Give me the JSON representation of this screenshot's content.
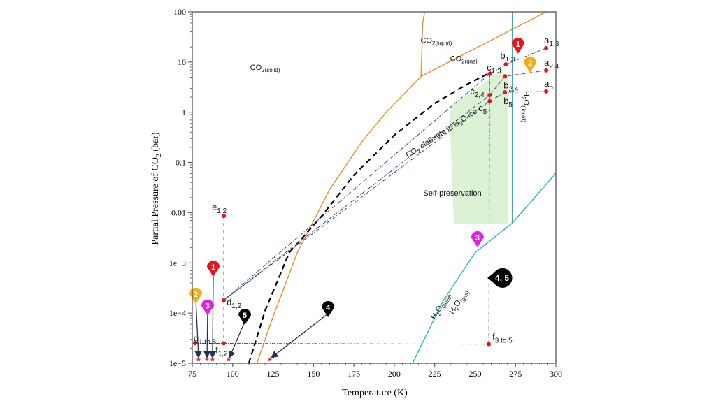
{
  "chart_data": {
    "type": "line",
    "xlabel": "Temperature (K)",
    "ylabel": {
      "main": "Partial Pressure of CO",
      "sub": "2",
      "tail": " (bar)"
    },
    "xlim": [
      75,
      300
    ],
    "ylim": [
      1e-05,
      100
    ],
    "yscale": "log",
    "grid": false,
    "x_ticks": [
      75,
      100,
      125,
      150,
      175,
      200,
      225,
      250,
      275,
      300
    ],
    "y_ticks": [
      100,
      10,
      1,
      0.1,
      0.01,
      0.001,
      0.0001,
      1e-05
    ],
    "y_tick_labels": [
      "100",
      "10",
      "1",
      "0.1",
      "0.01",
      "1e−3",
      "1e−4",
      "1e−5"
    ],
    "colors": {
      "co2_boundary": "#f08a24",
      "h2o_boundary": "#22b8c0",
      "clathrate": "#000000",
      "path": "#2c4a6e",
      "point": "#e8141c",
      "self_preservation": "#d9efcf"
    },
    "curves": [
      {
        "id": "co2-solid-gas",
        "color": "#f08a24",
        "style": "solid",
        "points": [
          [
            115,
            1e-05
          ],
          [
            125,
            8.5e-05
          ],
          [
            140,
            0.0016
          ],
          [
            160,
            0.029
          ],
          [
            180,
            0.26
          ],
          [
            195,
            1.0
          ],
          [
            216.6,
            5.18
          ]
        ]
      },
      {
        "id": "co2-solid-liquid",
        "color": "#f08a24",
        "style": "solid",
        "points": [
          [
            216.6,
            5.18
          ],
          [
            217.6,
            60
          ],
          [
            218.8,
            100
          ]
        ]
      },
      {
        "id": "co2-liquid-gas",
        "color": "#f08a24",
        "style": "solid",
        "points": [
          [
            216.6,
            5.18
          ],
          [
            294,
            100
          ]
        ]
      },
      {
        "id": "clathrate",
        "color": "#000000",
        "style": "dashed",
        "points": [
          [
            110,
            1e-05
          ],
          [
            120,
            0.00011
          ],
          [
            135,
            0.0016
          ],
          [
            155,
            0.0085
          ],
          [
            175,
            0.056
          ],
          [
            200,
            0.35
          ],
          [
            225,
            1.5
          ],
          [
            245,
            3.6
          ],
          [
            260,
            6.3
          ]
        ]
      },
      {
        "id": "h2o-melting",
        "color": "#22b8c0",
        "style": "solid",
        "points": [
          [
            273,
            0.0062
          ],
          [
            273,
            100
          ]
        ]
      },
      {
        "id": "h2o-solid-gas",
        "color": "#22b8c0",
        "style": "solid",
        "points": [
          [
            211.3,
            1e-05
          ],
          [
            230,
            0.00017
          ],
          [
            250,
            0.0016
          ],
          [
            273,
            0.0062
          ],
          [
            300,
            0.061
          ]
        ]
      }
    ],
    "self_preservation_region": [
      [
        234.2,
        1.2
      ],
      [
        266.3,
        7.0
      ],
      [
        270.6,
        5.0
      ],
      [
        270.6,
        0.006
      ],
      [
        236.8,
        0.006
      ]
    ],
    "points": [
      {
        "id": "a13",
        "label": "a",
        "sub": "1,3",
        "x": 294,
        "y": 19,
        "lx": -3,
        "ly": -7
      },
      {
        "id": "a24",
        "label": "a",
        "sub": "2,4",
        "x": 294,
        "y": 6.8,
        "lx": -3,
        "ly": -7
      },
      {
        "id": "a5",
        "label": "a",
        "sub": "5",
        "x": 294,
        "y": 2.6,
        "lx": -3,
        "ly": -7
      },
      {
        "id": "b13",
        "label": "b",
        "sub": "1,3",
        "x": 269,
        "y": 9.0,
        "lx": -8,
        "ly": -8
      },
      {
        "id": "b24",
        "label": "b",
        "sub": "2,4",
        "x": 268.5,
        "y": 5.2,
        "lx": -2,
        "ly": 17
      },
      {
        "id": "b5",
        "label": "b",
        "sub": "5",
        "x": 268.5,
        "y": 2.5,
        "lx": -2,
        "ly": 17
      },
      {
        "id": "c13",
        "label": "c",
        "sub": "1,3",
        "x": 259,
        "y": 5.8,
        "lx": -4,
        "ly": -5
      },
      {
        "id": "c24",
        "label": "c",
        "sub": "2,4",
        "x": 259,
        "y": 2.2,
        "lx": -28,
        "ly": -1
      },
      {
        "id": "c5",
        "label": "c",
        "sub": "5",
        "x": 259,
        "y": 1.66,
        "lx": -16,
        "ly": 14
      },
      {
        "id": "e12",
        "label": "e",
        "sub": "1,2",
        "x": 94.5,
        "y": 0.0086,
        "lx": -17,
        "ly": -8
      },
      {
        "id": "d12",
        "label": "d",
        "sub": "1,2",
        "x": 94.5,
        "y": 0.00018,
        "lx": 4,
        "ly": 7
      },
      {
        "id": "f12",
        "label": "f",
        "sub": "1,2",
        "x": 94.5,
        "y": 2.5e-05,
        "lx": -12,
        "ly": 14
      },
      {
        "id": "g",
        "label": "g",
        "sub": "1 to 5",
        "x": 76.7,
        "y": 2.5e-05,
        "lx": -2,
        "ly": -3
      },
      {
        "id": "f35",
        "label": "f",
        "sub": "3 to 5",
        "x": 258.5,
        "y": 2.4e-05,
        "lx": 5,
        "ly": -6
      }
    ],
    "end_markers": [
      {
        "x": 78.9,
        "y": 1.15e-05
      },
      {
        "x": 84.1,
        "y": 1.15e-05
      },
      {
        "x": 87.5,
        "y": 1.15e-05
      },
      {
        "x": 97.5,
        "y": 1.15e-05
      },
      {
        "x": 123,
        "y": 1.15e-05
      }
    ],
    "paths": [
      [
        [
          294,
          19
        ],
        [
          269,
          9.0
        ],
        [
          259,
          5.8
        ],
        [
          94.5,
          0.00018
        ]
      ],
      [
        [
          294,
          6.8
        ],
        [
          268.5,
          5.2
        ],
        [
          259,
          2.2
        ],
        [
          94.5,
          0.00018
        ]
      ],
      [
        [
          294,
          2.6
        ],
        [
          268.5,
          2.5
        ],
        [
          259,
          1.66
        ],
        [
          94.5,
          0.00018
        ]
      ],
      [
        [
          94.5,
          0.0086
        ],
        [
          94.5,
          2.5e-05
        ]
      ],
      [
        [
          259,
          5.8
        ],
        [
          258.5,
          2.4e-05
        ]
      ],
      [
        [
          76.7,
          2.5e-05
        ],
        [
          258.5,
          2.4e-05
        ]
      ]
    ],
    "markers": [
      {
        "label": "1",
        "color": "#e8141c",
        "x": 276.6,
        "y": 23,
        "tx": null,
        "ty": null
      },
      {
        "label": "2",
        "color": "#f2ad1c",
        "x": 284,
        "y": 9.6,
        "tx": null,
        "ty": null
      },
      {
        "label": "3",
        "color": "#e020e8",
        "x": 251.5,
        "y": 0.0032,
        "tx": null,
        "ty": null
      },
      {
        "label": "4, 5",
        "color": "#000000",
        "x": 266.7,
        "y": 0.0005,
        "tx": null,
        "ty": null
      },
      {
        "label": "2",
        "color": "#f2ad1c",
        "x": 77.2,
        "y": 0.00024,
        "tx": 78.9,
        "ty": 1.3e-05
      },
      {
        "label": "3",
        "color": "#e020e8",
        "x": 84.5,
        "y": 0.00014,
        "tx": 84.1,
        "ty": 1.3e-05
      },
      {
        "label": "1",
        "color": "#e8141c",
        "x": 88,
        "y": 0.00083,
        "tx": 87.5,
        "ty": 1.3e-05
      },
      {
        "label": "5",
        "color": "#000000",
        "x": 107.5,
        "y": 9.1e-05,
        "tx": 98,
        "ty": 1.3e-05
      },
      {
        "label": "4",
        "color": "#000000",
        "x": 159,
        "y": 0.00013,
        "tx": 124,
        "ty": 1.3e-05
      }
    ],
    "annotations": [
      {
        "id": "co2-solid",
        "main": "CO",
        "sub": "2(solid)",
        "x": 120,
        "y": 7,
        "rot": 0
      },
      {
        "id": "co2-liquid",
        "main": "CO",
        "sub": "2(liquid)",
        "x": 226,
        "y": 24,
        "rot": 0
      },
      {
        "id": "co2-gas",
        "main": "CO",
        "sub": "2(gas)",
        "x": 243,
        "y": 10.5,
        "rot": 0
      },
      {
        "id": "clathrate-label",
        "main": "CO",
        "sub": "2",
        "tail": " clathrate in H",
        "sub2": "2",
        "tail2": "O ice",
        "x": 230,
        "y": 0.35,
        "rot": -33
      },
      {
        "id": "h2o-liquid",
        "main": "H",
        "sub": "2",
        "tail": "O",
        "sub2": "(liquid)",
        "tail2": "",
        "x": 280,
        "y": 1.3,
        "rot": 90
      },
      {
        "id": "self-preservation",
        "main": "Self-preservation",
        "sub": "",
        "x": 236,
        "y": 0.022,
        "rot": 0
      },
      {
        "id": "h2o-solid",
        "main": "H",
        "sub": "2",
        "tail": "O",
        "sub2": "(solid)",
        "tail2": "",
        "x": 230,
        "y": 0.00013,
        "rot": -58
      },
      {
        "id": "h2o-gas",
        "main": "H",
        "sub": "2",
        "tail": "O",
        "sub2": "(gas)",
        "tail2": "",
        "x": 241,
        "y": 0.00016,
        "rot": -58
      }
    ]
  }
}
